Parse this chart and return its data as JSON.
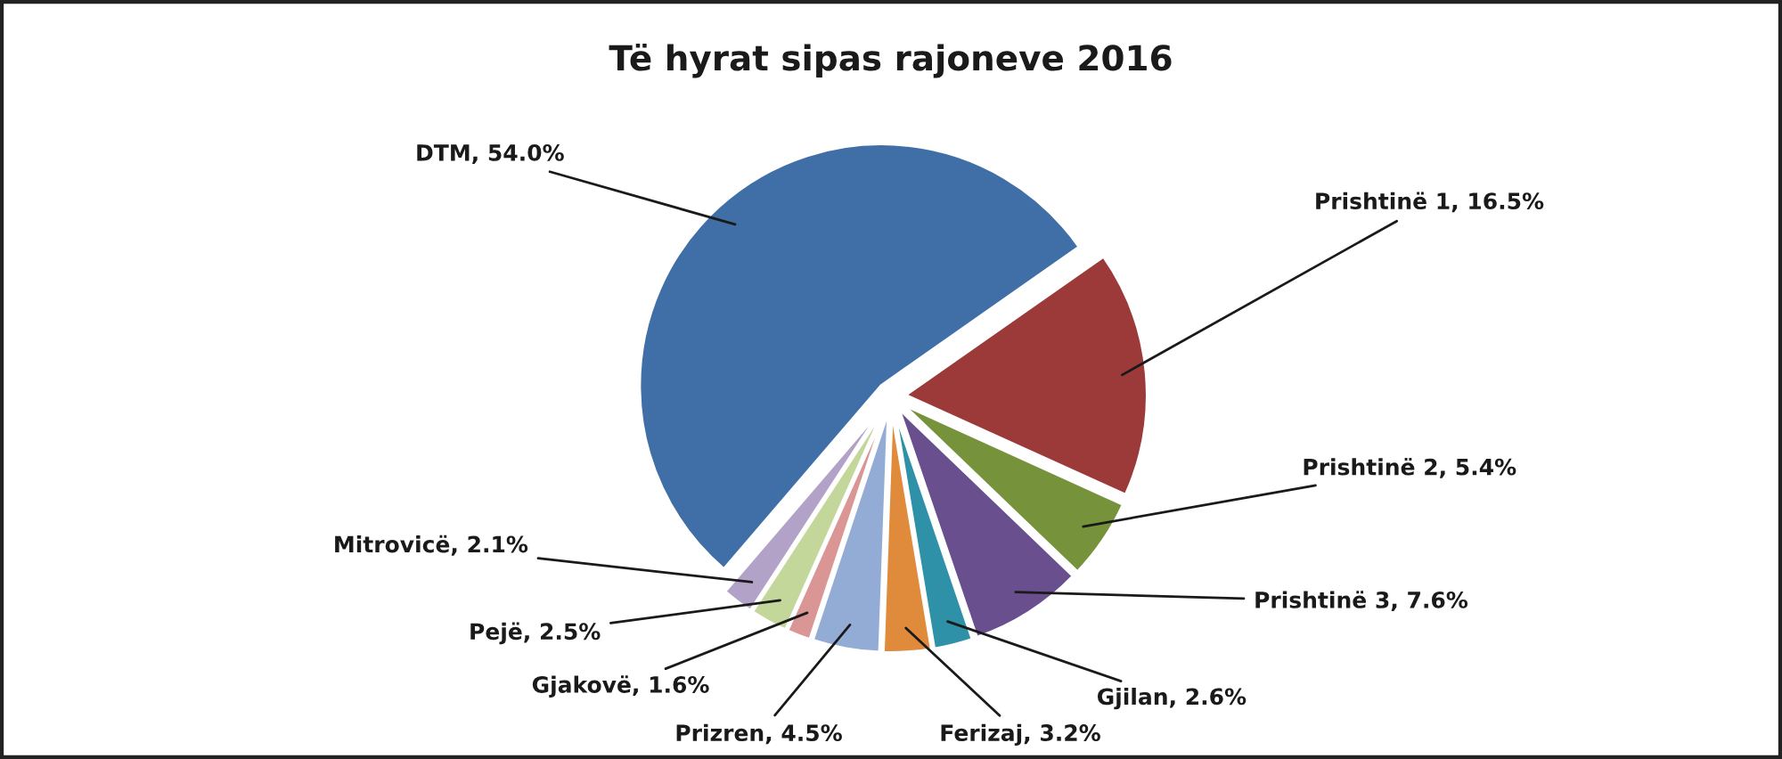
{
  "chart_data": {
    "type": "pie",
    "title": "Të hyrat sipas rajoneve 2016",
    "categories": [
      "DTM",
      "Prishtinë 1",
      "Prishtinë 2",
      "Prishtinë 3",
      "Gjilan",
      "Ferizaj",
      "Prizren",
      "Gjakovë",
      "Pejë",
      "Mitrovicë"
    ],
    "values": [
      54.0,
      16.5,
      5.4,
      7.6,
      2.6,
      3.2,
      4.5,
      1.6,
      2.5,
      2.1
    ],
    "colors": [
      "#3f6fa6",
      "#9b3a38",
      "#76933c",
      "#6a4f8f",
      "#2f91a8",
      "#e08a3c",
      "#93acd6",
      "#d99694",
      "#c4d79b",
      "#b3a2c7"
    ],
    "value_labels": [
      "54.0%",
      "16.5%",
      "5.4%",
      "7.6%",
      "2.6%",
      "3.2%",
      "4.5%",
      "1.6%",
      "2.5%",
      "2.1%"
    ]
  }
}
